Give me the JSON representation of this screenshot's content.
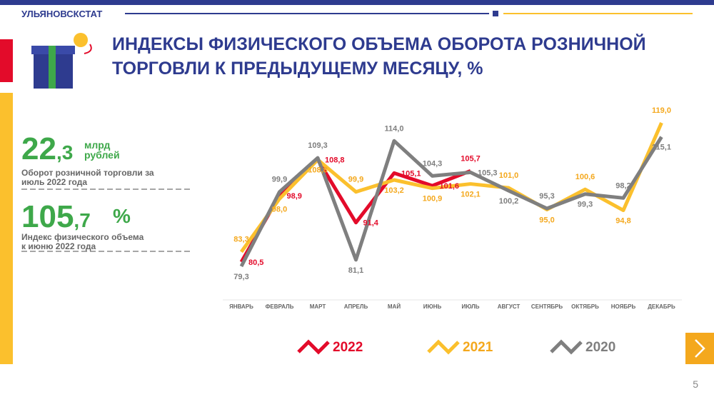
{
  "header": {
    "org": "УЛЬЯНОВСКСТАТ",
    "title_lines": [
      "ИНДЕКСЫ ФИЗИЧЕСКОГО ОБЪЕМА ОБОРОТА РОЗНИЧНОЙ",
      "ТОРГОВЛИ К ПРЕДЫДУЩЕМУ МЕСЯЦУ, %"
    ]
  },
  "stats": [
    {
      "value_main": "22",
      "value_frac": ",3",
      "unit_lines": [
        "млрд",
        "рублей"
      ],
      "caption_lines": [
        "Оборот розничной торговли за",
        "июль 2022 года"
      ]
    },
    {
      "value_main": "105",
      "value_frac": ",7",
      "unit_lines": [
        "%"
      ],
      "caption_lines": [
        "Индекс физического объема",
        "к июню  2022 года"
      ]
    }
  ],
  "page_number": "5",
  "chart_data": {
    "type": "line",
    "categories": [
      "ЯНВАРЬ",
      "ФЕВРАЛЬ",
      "МАРТ",
      "АПРЕЛЬ",
      "МАЙ",
      "ИЮНЬ",
      "ИЮЛЬ",
      "АВГУСТ",
      "СЕНТЯБРЬ",
      "ОКТЯБРЬ",
      "НОЯБРЬ",
      "ДЕКАБРЬ"
    ],
    "series": [
      {
        "name": "2022",
        "color": "#e30b2a",
        "values": [
          80.5,
          98.9,
          108.8,
          91.4,
          105.1,
          101.6,
          105.7,
          null,
          null,
          null,
          null,
          null
        ],
        "value_labels": [
          "80,5",
          "98,9",
          "108,8",
          "91,4",
          "105,1",
          "101,6",
          "105,7",
          null,
          null,
          null,
          null,
          null
        ]
      },
      {
        "name": "2021",
        "color": "#fbc02d",
        "values": [
          83.3,
          98.0,
          108.8,
          99.9,
          103.2,
          100.9,
          102.1,
          101.0,
          95.0,
          100.6,
          94.8,
          119.0
        ],
        "value_labels": [
          "83,3",
          "98,0",
          "108,8",
          "99,9",
          "103,2",
          "100,9",
          "102,1",
          "101,0",
          "95,0",
          "100,6",
          "94,8",
          "119,0"
        ]
      },
      {
        "name": "2020",
        "color": "#7f7f7f",
        "values": [
          79.3,
          99.9,
          109.3,
          81.1,
          114.0,
          104.3,
          105.3,
          100.2,
          95.3,
          99.3,
          98.2,
          115.1
        ],
        "value_labels": [
          "79,3",
          "99,9",
          "109,3",
          "81,1",
          "114,0",
          "104,3",
          "105,3",
          "100,2",
          "95,3",
          "99,3",
          "98,2",
          "115,1"
        ]
      }
    ]
  }
}
